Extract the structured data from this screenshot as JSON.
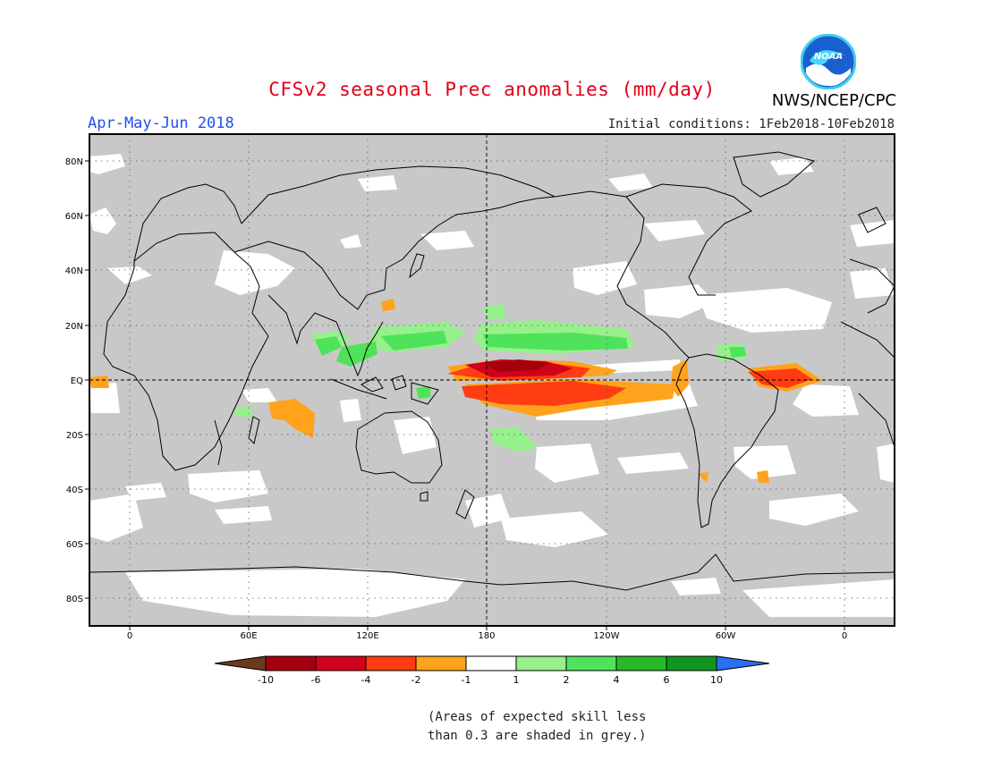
{
  "header": {
    "title": "CFSv2 seasonal Prec anomalies (mm/day)",
    "season": "Apr-May-Jun 2018",
    "initial_conditions": "Initial conditions: 1Feb2018-10Feb2018",
    "agency": "NWS/NCEP/CPC",
    "logo_text": "NOAA"
  },
  "map": {
    "lat_ticks": [
      "80N",
      "60N",
      "40N",
      "20N",
      "EQ",
      "20S",
      "40S",
      "60S",
      "80S"
    ],
    "lon_ticks": [
      "0",
      "60E",
      "120E",
      "180",
      "120W",
      "60W",
      "0"
    ],
    "lat_range": [
      -90,
      90
    ],
    "lon_range": [
      -20,
      380
    ],
    "background_color": "#c8c8c8",
    "skill_mask_note": "grey = low skill"
  },
  "legend": {
    "labels": [
      "-10",
      "-6",
      "-4",
      "-2",
      "-1",
      "1",
      "2",
      "4",
      "6",
      "10"
    ],
    "colors": [
      "#6b3a1e",
      "#a50010",
      "#d0021b",
      "#ff3c12",
      "#ffa21c",
      "#ffffff",
      "#96f08c",
      "#4ee35a",
      "#28b928",
      "#10961e",
      "#2a6ff0"
    ]
  },
  "footnote": {
    "line1": "(Areas of expected skill less",
    "line2": "than 0.3 are shaded in grey.)"
  }
}
